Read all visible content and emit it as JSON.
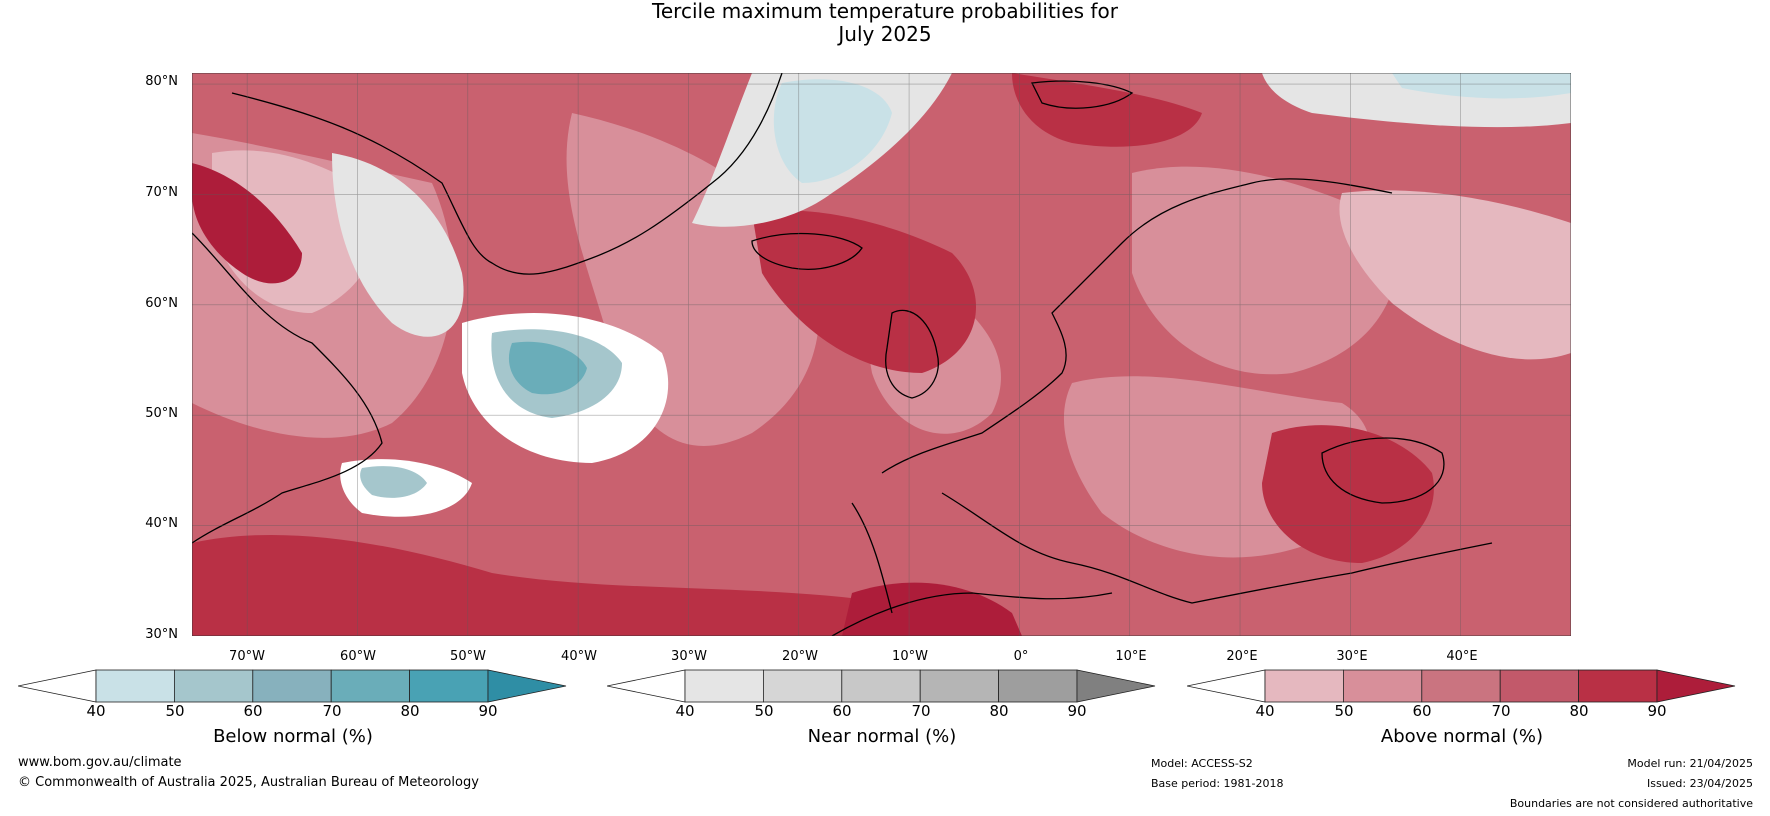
{
  "title_line1": "Tercile maximum temperature probabilities for",
  "title_line2": "July 2025",
  "map": {
    "lat_labels": [
      "80°N",
      "70°N",
      "60°N",
      "50°N",
      "40°N",
      "30°N"
    ],
    "lon_labels": [
      "70°W",
      "60°W",
      "50°W",
      "40°W",
      "30°W",
      "20°W",
      "10°W",
      "0°",
      "10°E",
      "20°E",
      "30°E",
      "40°E"
    ],
    "extent": {
      "lon_min": -75,
      "lon_max": 50,
      "lat_min": 30,
      "lat_max": 81
    },
    "graticule_lon": [
      -70,
      -60,
      -50,
      -40,
      -30,
      -20,
      -10,
      0,
      10,
      20,
      30,
      40
    ],
    "graticule_lat": [
      80,
      70,
      60,
      50,
      40
    ],
    "background_color": "#c9616f"
  },
  "colorbars": [
    {
      "name": "below",
      "label": "Below normal (%)",
      "ticks": [
        "40",
        "50",
        "60",
        "70",
        "80",
        "90"
      ],
      "colors": [
        "#c9e1e7",
        "#a5c6cc",
        "#87b1bd",
        "#6aadb9",
        "#49a2b4",
        "#2f8ea5"
      ]
    },
    {
      "name": "near",
      "label": "Near normal (%)",
      "ticks": [
        "40",
        "50",
        "60",
        "70",
        "80",
        "90"
      ],
      "colors": [
        "#e5e5e5",
        "#d6d6d6",
        "#c8c8c8",
        "#b5b5b5",
        "#9e9e9e",
        "#808080"
      ]
    },
    {
      "name": "above",
      "label": "Above normal (%)",
      "ticks": [
        "40",
        "50",
        "60",
        "70",
        "80",
        "90"
      ],
      "colors": [
        "#e5b8bf",
        "#d88f9a",
        "#ca7480",
        "#c2596a",
        "#b93045",
        "#ad1d3a"
      ]
    }
  ],
  "footer": {
    "website": "www.bom.gov.au/climate",
    "copyright": "© Commonwealth of Australia 2025, Australian Bureau of Meteorology",
    "model": "Model: ACCESS-S2",
    "base_period": "Base period: 1981-2018",
    "model_run": "Model run: 21/04/2025",
    "issued": "Issued: 23/04/2025",
    "disclaimer": "Boundaries are not considered authoritative"
  }
}
